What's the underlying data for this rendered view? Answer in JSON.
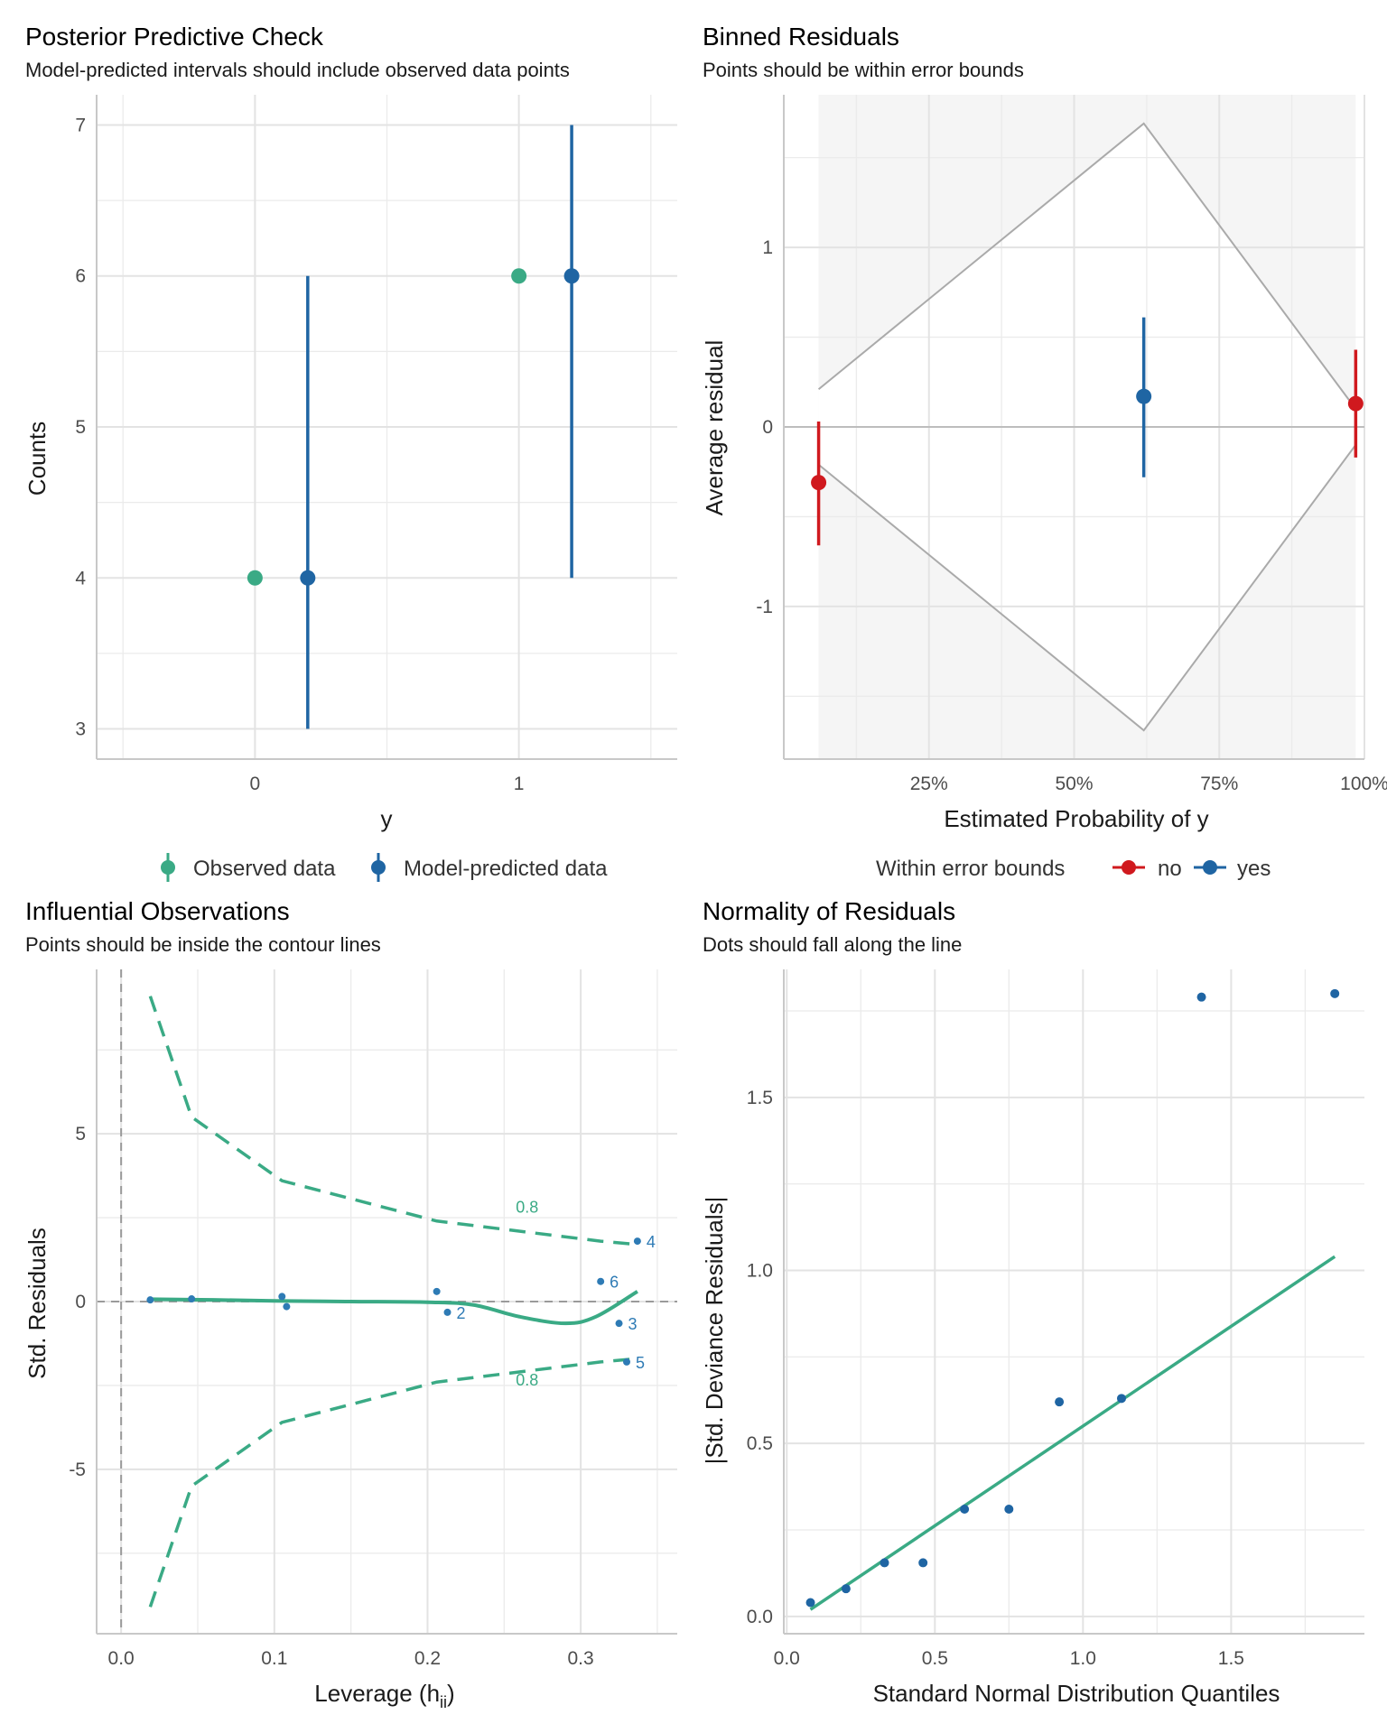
{
  "colors": {
    "observed": "#3aaa85",
    "predicted": "#1f65a3",
    "no": "#d0191e",
    "yes": "#1f65a3",
    "bounds": "#aaaaaa",
    "grid": "#ebebeb",
    "contour": "#3aaa85",
    "point": "#2e7bb5"
  },
  "panels": {
    "ppc": {
      "title": "Posterior Predictive Check",
      "subtitle": "Model-predicted intervals should include observed data points",
      "xlabel": "y",
      "ylabel": "Counts",
      "legend": {
        "observed": "Observed data",
        "predicted": "Model-predicted data"
      }
    },
    "binned": {
      "title": "Binned Residuals",
      "subtitle": "Points should be within error bounds",
      "xlabel": "Estimated Probability of y",
      "ylabel": "Average residual",
      "legend": {
        "title": "Within error bounds",
        "no": "no",
        "yes": "yes"
      }
    },
    "influence": {
      "title": "Influential Observations",
      "subtitle": "Points should be inside the contour lines",
      "xlabel": "Leverage (h",
      "xlabel_sub": "ii",
      "xlabel_end": ")",
      "ylabel": "Std. Residuals"
    },
    "qq": {
      "title": "Normality of Residuals",
      "subtitle": "Dots should fall along the line",
      "xlabel": "Standard Normal Distribution Quantiles",
      "ylabel": "|Std. Deviance Residuals|"
    }
  },
  "chart_data": [
    {
      "id": "ppc",
      "type": "scatter",
      "title": "Posterior Predictive Check",
      "xlabel": "y",
      "ylabel": "Counts",
      "x_ticks": [
        "0",
        "1"
      ],
      "x_tick_values": [
        0,
        1
      ],
      "y_ticks": [
        "3",
        "4",
        "5",
        "6",
        "7"
      ],
      "y_tick_values": [
        3,
        4,
        5,
        6,
        7
      ],
      "xlim": [
        -0.6,
        1.6
      ],
      "ylim": [
        2.8,
        7.2
      ],
      "series": [
        {
          "name": "Observed data",
          "points": [
            {
              "x": 0,
              "y": 4
            },
            {
              "x": 1,
              "y": 6
            }
          ]
        },
        {
          "name": "Model-predicted data",
          "points": [
            {
              "x": 0,
              "y": 4,
              "low": 3,
              "high": 6
            },
            {
              "x": 1,
              "y": 6,
              "low": 4,
              "high": 7
            }
          ]
        }
      ]
    },
    {
      "id": "binned",
      "type": "scatter",
      "title": "Binned Residuals",
      "xlabel": "Estimated Probability of y",
      "ylabel": "Average residual",
      "x_ticks": [
        "25%",
        "50%",
        "75%",
        "100%"
      ],
      "x_tick_values": [
        0.25,
        0.5,
        0.75,
        1.0
      ],
      "y_ticks": [
        "-1",
        "0",
        "1"
      ],
      "y_tick_values": [
        -1,
        0,
        1
      ],
      "xlim": [
        0.0,
        1.0
      ],
      "ylim": [
        -1.85,
        1.85
      ],
      "shaded_range": [
        0.06,
        0.985
      ],
      "bounds_upper": [
        {
          "x": 0.06,
          "y": 0.21
        },
        {
          "x": 0.62,
          "y": 1.69
        },
        {
          "x": 0.985,
          "y": 0.1
        }
      ],
      "bounds_lower": [
        {
          "x": 0.06,
          "y": -0.21
        },
        {
          "x": 0.62,
          "y": -1.69
        },
        {
          "x": 0.985,
          "y": -0.1
        }
      ],
      "points": [
        {
          "x": 0.06,
          "y": -0.31,
          "low": -0.66,
          "high": 0.03,
          "within": "no"
        },
        {
          "x": 0.62,
          "y": 0.17,
          "low": -0.28,
          "high": 0.61,
          "within": "yes"
        },
        {
          "x": 0.985,
          "y": 0.13,
          "low": -0.17,
          "high": 0.43,
          "within": "no"
        }
      ]
    },
    {
      "id": "influence",
      "type": "scatter",
      "title": "Influential Observations",
      "xlabel": "Leverage (hii)",
      "ylabel": "Std. Residuals",
      "x_ticks": [
        "0.0",
        "0.1",
        "0.2",
        "0.3"
      ],
      "x_tick_values": [
        0,
        0.1,
        0.2,
        0.3
      ],
      "y_ticks": [
        "-5",
        "0",
        "5"
      ],
      "y_tick_values": [
        -5,
        0,
        5
      ],
      "xlim": [
        -0.016,
        0.363
      ],
      "ylim": [
        -9.9,
        9.9
      ],
      "points": [
        {
          "x": 0.019,
          "y": 0.05,
          "label": ""
        },
        {
          "x": 0.046,
          "y": 0.08,
          "label": ""
        },
        {
          "x": 0.105,
          "y": 0.15,
          "label": ""
        },
        {
          "x": 0.108,
          "y": -0.15,
          "label": ""
        },
        {
          "x": 0.206,
          "y": 0.3,
          "label": ""
        },
        {
          "x": 0.213,
          "y": -0.32,
          "label": "2"
        },
        {
          "x": 0.313,
          "y": 0.6,
          "label": "6"
        },
        {
          "x": 0.325,
          "y": -0.65,
          "label": "3"
        },
        {
          "x": 0.33,
          "y": -1.8,
          "label": "5"
        },
        {
          "x": 0.337,
          "y": 1.8,
          "label": "4"
        }
      ],
      "smooth": [
        {
          "x": 0.019,
          "y": 0.07
        },
        {
          "x": 0.06,
          "y": 0.05
        },
        {
          "x": 0.1,
          "y": 0.02
        },
        {
          "x": 0.15,
          "y": 0.0
        },
        {
          "x": 0.2,
          "y": -0.02
        },
        {
          "x": 0.23,
          "y": -0.1
        },
        {
          "x": 0.26,
          "y": -0.45
        },
        {
          "x": 0.29,
          "y": -0.65
        },
        {
          "x": 0.31,
          "y": -0.45
        },
        {
          "x": 0.337,
          "y": 0.3
        }
      ],
      "contour_upper": [
        {
          "x": 0.019,
          "y": 9.1
        },
        {
          "x": 0.046,
          "y": 5.5
        },
        {
          "x": 0.105,
          "y": 3.6
        },
        {
          "x": 0.206,
          "y": 2.4
        },
        {
          "x": 0.313,
          "y": 1.8
        },
        {
          "x": 0.337,
          "y": 1.7
        }
      ],
      "contour_lower": [
        {
          "x": 0.019,
          "y": -9.1
        },
        {
          "x": 0.046,
          "y": -5.5
        },
        {
          "x": 0.105,
          "y": -3.6
        },
        {
          "x": 0.206,
          "y": -2.4
        },
        {
          "x": 0.313,
          "y": -1.8
        },
        {
          "x": 0.337,
          "y": -1.7
        }
      ],
      "contour_labels": [
        {
          "x": 0.265,
          "y": 2.65,
          "text": "0.8"
        },
        {
          "x": 0.265,
          "y": -2.5,
          "text": "0.8"
        }
      ],
      "reference_lines": {
        "x": 0,
        "y": 0
      }
    },
    {
      "id": "qq",
      "type": "scatter",
      "title": "Normality of Residuals",
      "xlabel": "Standard Normal Distribution Quantiles",
      "ylabel": "|Std. Deviance Residuals|",
      "x_ticks": [
        "0.0",
        "0.5",
        "1.0",
        "1.5"
      ],
      "x_tick_values": [
        0,
        0.5,
        1,
        1.5
      ],
      "y_ticks": [
        "0.0",
        "0.5",
        "1.0",
        "1.5"
      ],
      "y_tick_values": [
        0,
        0.5,
        1,
        1.5
      ],
      "xlim": [
        -0.01,
        1.95
      ],
      "ylim": [
        -0.05,
        1.87
      ],
      "points": [
        {
          "x": 0.08,
          "y": 0.04
        },
        {
          "x": 0.2,
          "y": 0.08
        },
        {
          "x": 0.33,
          "y": 0.155
        },
        {
          "x": 0.46,
          "y": 0.155
        },
        {
          "x": 0.6,
          "y": 0.31
        },
        {
          "x": 0.75,
          "y": 0.31
        },
        {
          "x": 0.92,
          "y": 0.62
        },
        {
          "x": 1.13,
          "y": 0.63
        },
        {
          "x": 1.4,
          "y": 1.79
        },
        {
          "x": 1.85,
          "y": 1.8
        }
      ],
      "reference_line": [
        {
          "x": 0.08,
          "y": 0.02
        },
        {
          "x": 1.85,
          "y": 1.04
        }
      ]
    }
  ]
}
